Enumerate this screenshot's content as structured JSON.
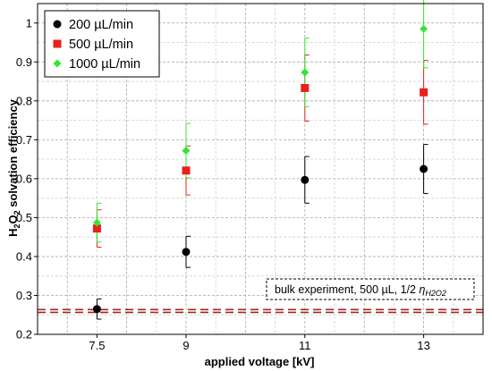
{
  "chart_data": {
    "type": "scatter",
    "title": "",
    "xlabel": "applied voltage [kV]",
    "ylabel_parts": {
      "base1": "H",
      "sub1": "2",
      "base2": "O",
      "sub2": "2",
      "rest": " solvation efficiency"
    },
    "ylim": [
      0.2,
      1.05
    ],
    "xlim": [
      6.5,
      14.0
    ],
    "x_ticks": [
      7.5,
      9,
      11,
      13
    ],
    "x_tick_labels": [
      "7.5",
      "9",
      "11",
      "13"
    ],
    "y_ticks": [
      0.2,
      0.3,
      0.4,
      0.5,
      0.6,
      0.7,
      0.8,
      0.9,
      1.0
    ],
    "y_tick_labels": [
      "0.2",
      "0.3",
      "0.4",
      "0.5",
      "0.6",
      "0.7",
      "0.8",
      "0.9",
      "1"
    ],
    "grid": true,
    "legend_position": "top-left",
    "series": [
      {
        "name": "200 µL/min",
        "color": "#000000",
        "marker": "circle",
        "x": [
          7.5,
          9,
          11,
          13
        ],
        "y": [
          0.265,
          0.412,
          0.597,
          0.625
        ],
        "err": [
          0.026,
          0.04,
          0.06,
          0.063
        ]
      },
      {
        "name": "500 µL/min",
        "color": "#e8211a",
        "marker": "square",
        "x": [
          7.5,
          9,
          11,
          13
        ],
        "y": [
          0.472,
          0.621,
          0.833,
          0.822
        ],
        "err": [
          0.048,
          0.063,
          0.085,
          0.082
        ]
      },
      {
        "name": "1000 µL/min",
        "color": "#33e633",
        "marker": "diamond",
        "x": [
          7.5,
          9,
          11,
          13
        ],
        "y": [
          0.487,
          0.672,
          0.873,
          0.985
        ],
        "err": [
          0.05,
          0.07,
          0.088,
          0.1
        ]
      }
    ],
    "reference_line": {
      "y": 0.26,
      "color": "#a0281e",
      "label_prefix": "bulk experiment, 500 µL, 1/2 ",
      "label_symbol": "η",
      "label_sub": "H2O2"
    }
  }
}
